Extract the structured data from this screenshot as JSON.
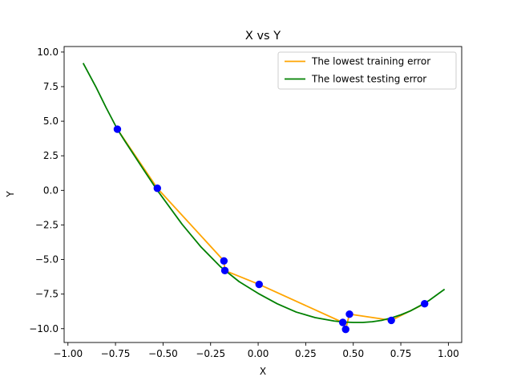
{
  "chart_data": {
    "type": "line",
    "title": "X vs Y",
    "xlabel": "X",
    "ylabel": "Y",
    "xlim": [
      -1.02,
      1.07
    ],
    "ylim": [
      -11.0,
      10.4
    ],
    "xticks": [
      -1.0,
      -0.75,
      -0.5,
      -0.25,
      0.0,
      0.25,
      0.5,
      0.75,
      1.0
    ],
    "xtick_labels": [
      "−1.00",
      "−0.75",
      "−0.50",
      "−0.25",
      "0.00",
      "0.25",
      "0.50",
      "0.75",
      "1.00"
    ],
    "yticks": [
      -10.0,
      -7.5,
      -5.0,
      -2.5,
      0.0,
      2.5,
      5.0,
      7.5,
      10.0
    ],
    "ytick_labels": [
      "−10.0",
      "−7.5",
      "−5.0",
      "−2.5",
      "0.0",
      "2.5",
      "5.0",
      "7.5",
      "10.0"
    ],
    "grid": false,
    "legend_position": "top-right",
    "scatter": {
      "name": "",
      "color": "#0000ff",
      "points": [
        [
          -0.74,
          4.42
        ],
        [
          -0.53,
          0.15
        ],
        [
          -0.18,
          -5.1
        ],
        [
          -0.175,
          -5.8
        ],
        [
          0.005,
          -6.8
        ],
        [
          0.445,
          -9.55
        ],
        [
          0.46,
          -10.05
        ],
        [
          0.48,
          -8.95
        ],
        [
          0.7,
          -9.4
        ],
        [
          0.875,
          -8.2
        ]
      ]
    },
    "series": [
      {
        "name": "The lowest training error",
        "color": "#ffa500",
        "x": [
          -0.74,
          -0.53,
          -0.18,
          -0.175,
          0.005,
          0.445,
          0.46,
          0.48,
          0.7,
          0.875
        ],
        "y": [
          4.42,
          0.15,
          -5.1,
          -5.8,
          -6.8,
          -9.55,
          -10.05,
          -8.95,
          -9.4,
          -8.2
        ]
      },
      {
        "name": "The lowest testing error",
        "color": "#008000",
        "x": [
          -0.92,
          -0.85,
          -0.8,
          -0.74,
          -0.7,
          -0.6,
          -0.53,
          -0.4,
          -0.3,
          -0.2,
          -0.1,
          0.0,
          0.1,
          0.2,
          0.3,
          0.4,
          0.45,
          0.5,
          0.55,
          0.6,
          0.65,
          0.7,
          0.75,
          0.8,
          0.85,
          0.9,
          0.95,
          0.98
        ],
        "y": [
          9.2,
          7.4,
          6.0,
          4.42,
          3.55,
          1.45,
          0.0,
          -2.45,
          -4.1,
          -5.5,
          -6.6,
          -7.45,
          -8.2,
          -8.8,
          -9.2,
          -9.45,
          -9.52,
          -9.55,
          -9.55,
          -9.5,
          -9.4,
          -9.22,
          -9.0,
          -8.72,
          -8.35,
          -7.95,
          -7.45,
          -7.15
        ]
      }
    ]
  }
}
